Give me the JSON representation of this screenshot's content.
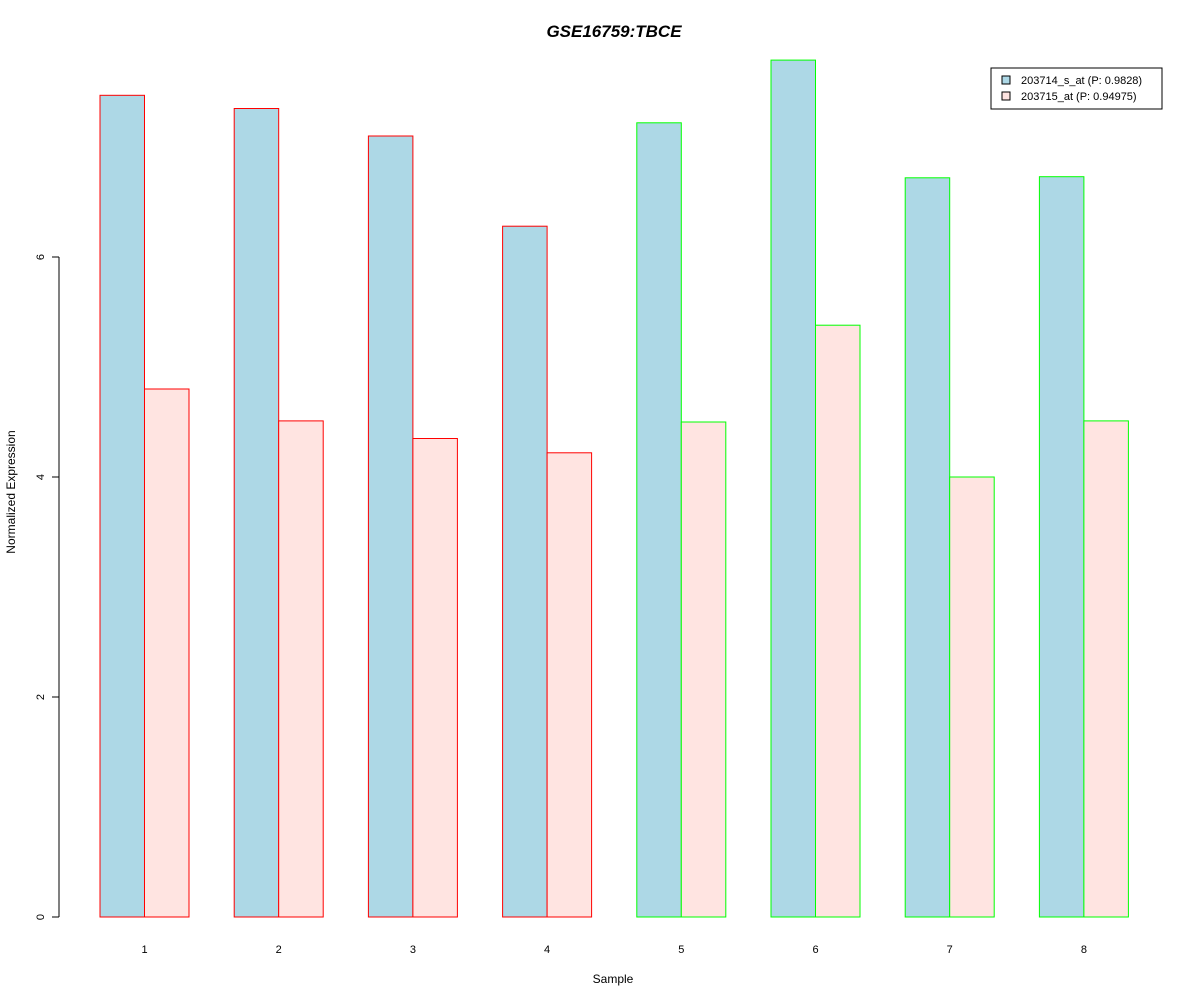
{
  "colors": {
    "title": "#0000CD",
    "series_fill": [
      "#ADD8E6",
      "#FFE4E1"
    ],
    "group_border": [
      "#FF0000",
      "#00FF00"
    ]
  },
  "chart_data": {
    "type": "bar",
    "title": "GSE16759:TBCE",
    "xlabel": "Sample",
    "ylabel": "Normalized Expression",
    "categories": [
      "1",
      "2",
      "3",
      "4",
      "5",
      "6",
      "7",
      "8"
    ],
    "yticks": [
      "0",
      "2",
      "4",
      "6"
    ],
    "ylim": [
      0,
      7.8
    ],
    "grid": false,
    "legend_position": "top-right",
    "group_border_index": [
      0,
      0,
      0,
      0,
      1,
      1,
      1,
      1
    ],
    "series": [
      {
        "name": "203714_s_at (P: 0.9828)",
        "values": [
          7.47,
          7.35,
          7.1,
          6.28,
          7.22,
          7.79,
          6.72,
          6.73
        ]
      },
      {
        "name": "203715_at (P: 0.94975)",
        "values": [
          4.8,
          4.51,
          4.35,
          4.22,
          4.5,
          5.38,
          4.0,
          4.51
        ]
      }
    ]
  }
}
